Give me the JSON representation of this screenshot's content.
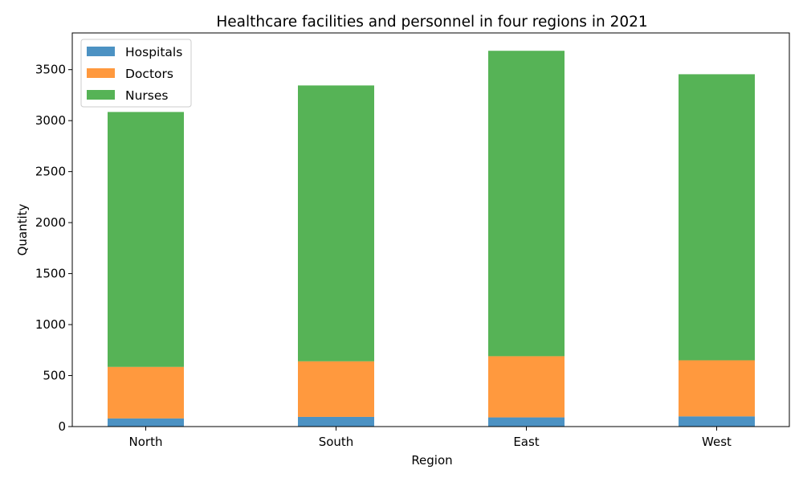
{
  "chart_data": {
    "type": "bar",
    "stacked": true,
    "title": "Healthcare facilities and personnel in four regions in 2021",
    "xlabel": "Region",
    "ylabel": "Quantity",
    "categories": [
      "North",
      "South",
      "East",
      "West"
    ],
    "ylim": [
      0,
      3860
    ],
    "yticks": [
      0,
      500,
      1000,
      1500,
      2000,
      2500,
      3000,
      3500
    ],
    "legend_position": "top-left",
    "grid": false,
    "series": [
      {
        "name": "Hospitals",
        "color": "#1f77b4",
        "values": [
          80,
          95,
          90,
          100
        ]
      },
      {
        "name": "Doctors",
        "color": "#ff7f0e",
        "values": [
          505,
          545,
          600,
          550
        ]
      },
      {
        "name": "Nurses",
        "color": "#2ca02c",
        "values": [
          2500,
          2705,
          2995,
          2805
        ]
      }
    ]
  }
}
